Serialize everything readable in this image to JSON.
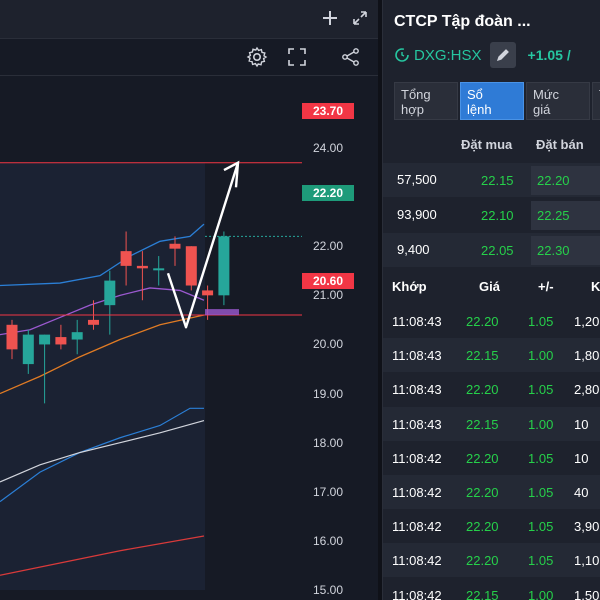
{
  "chart": {
    "axis_labels": [
      "24.00",
      "23.00",
      "22.00",
      "21.00",
      "20.00",
      "19.00",
      "18.00",
      "17.00",
      "16.00",
      "15.00"
    ],
    "resistance_label": "23.70",
    "last_price_label": "22.20",
    "support_label": "20.60",
    "colors": {
      "up": "#26a69a",
      "down": "#ef5350",
      "resistance": "#f23645",
      "support": "#f23645",
      "last": "#26a69a"
    },
    "icons": [
      "plus-icon",
      "expand-icon",
      "gear-icon",
      "fullscreen-icon",
      "share-icon"
    ]
  },
  "chart_data": {
    "type": "candlestick",
    "ylim": [
      15.0,
      24.0
    ],
    "candles": [
      {
        "o": 20.4,
        "h": 20.5,
        "l": 19.7,
        "c": 19.9
      },
      {
        "o": 19.6,
        "h": 20.3,
        "l": 19.4,
        "c": 20.2
      },
      {
        "o": 20.0,
        "h": 20.2,
        "l": 18.8,
        "c": 20.2
      },
      {
        "o": 20.15,
        "h": 20.4,
        "l": 19.9,
        "c": 20.0
      },
      {
        "o": 20.1,
        "h": 20.5,
        "l": 19.8,
        "c": 20.25
      },
      {
        "o": 20.5,
        "h": 20.9,
        "l": 20.3,
        "c": 20.4
      },
      {
        "o": 20.8,
        "h": 21.5,
        "l": 20.2,
        "c": 21.3
      },
      {
        "o": 21.9,
        "h": 22.3,
        "l": 21.2,
        "c": 21.6
      },
      {
        "o": 21.6,
        "h": 21.9,
        "l": 20.9,
        "c": 21.55
      },
      {
        "o": 21.55,
        "h": 21.8,
        "l": 21.2,
        "c": 21.55
      },
      {
        "o": 22.05,
        "h": 22.2,
        "l": 21.6,
        "c": 21.95
      },
      {
        "o": 22.0,
        "h": 22.0,
        "l": 21.1,
        "c": 21.2
      },
      {
        "o": 21.1,
        "h": 21.2,
        "l": 20.5,
        "c": 21.0
      },
      {
        "o": 21.0,
        "h": 22.3,
        "l": 20.8,
        "c": 22.2
      }
    ],
    "resistance": 23.7,
    "support": 20.6,
    "last": 22.2
  },
  "panel": {
    "company_name": "CTCP Tập đoàn ...",
    "ticker": "DXG:HSX",
    "change": "+1.05 /",
    "tabs": [
      {
        "label": "Tổng\nhợp"
      },
      {
        "label": "Sổ\nlệnh"
      },
      {
        "label": "Mức\ngiá"
      },
      {
        "label": "T"
      }
    ],
    "orderbook": {
      "buy_header": "Đặt mua",
      "sell_header": "Đặt bán",
      "rows": [
        {
          "vol": "57,500",
          "bid": "22.15",
          "ask": "22.20"
        },
        {
          "vol": "93,900",
          "bid": "22.10",
          "ask": "22.25"
        },
        {
          "vol": "9,400",
          "bid": "22.05",
          "ask": "22.30"
        }
      ]
    },
    "trades": {
      "headers": [
        "Khớp",
        "Giá",
        "+/-",
        "K"
      ],
      "rows": [
        {
          "time": "11:08:43",
          "price": "22.20",
          "chg": "1.05",
          "vol": "1,20"
        },
        {
          "time": "11:08:43",
          "price": "22.15",
          "chg": "1.00",
          "vol": "1,80"
        },
        {
          "time": "11:08:43",
          "price": "22.20",
          "chg": "1.05",
          "vol": "2,80"
        },
        {
          "time": "11:08:43",
          "price": "22.15",
          "chg": "1.00",
          "vol": "10"
        },
        {
          "time": "11:08:42",
          "price": "22.20",
          "chg": "1.05",
          "vol": "10"
        },
        {
          "time": "11:08:42",
          "price": "22.20",
          "chg": "1.05",
          "vol": "40"
        },
        {
          "time": "11:08:42",
          "price": "22.20",
          "chg": "1.05",
          "vol": "3,90"
        },
        {
          "time": "11:08:42",
          "price": "22.20",
          "chg": "1.05",
          "vol": "1,10"
        },
        {
          "time": "11:08:42",
          "price": "22.15",
          "chg": "1.00",
          "vol": "1,50"
        }
      ]
    }
  }
}
